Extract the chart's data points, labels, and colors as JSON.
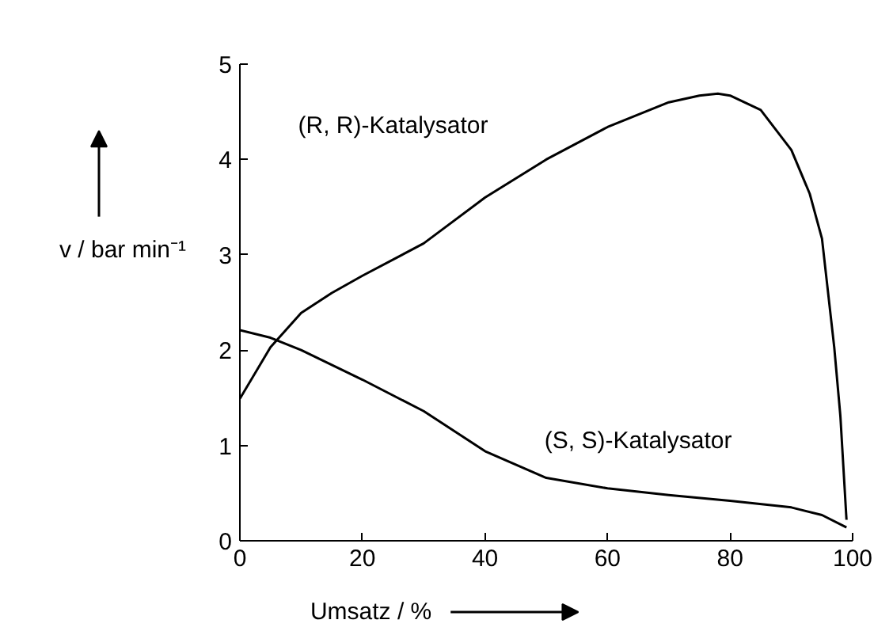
{
  "chart_data": {
    "type": "line",
    "xlabel": "Umsatz / %",
    "ylabel": "v / bar min⁻¹",
    "xlim": [
      0,
      100
    ],
    "ylim": [
      0,
      5
    ],
    "xticks": [
      0,
      20,
      40,
      60,
      80,
      100
    ],
    "yticks": [
      0,
      1,
      2,
      3,
      4,
      5
    ],
    "grid": false,
    "marker": "none",
    "line_style": "solid",
    "series": [
      {
        "color": "#000000",
        "x": [
          0,
          5,
          10,
          15,
          20,
          30,
          40,
          50,
          60,
          70,
          75,
          78,
          80,
          85,
          90,
          93,
          95,
          97,
          98,
          99
        ],
        "values": [
          1.49,
          2.03,
          2.39,
          2.6,
          2.78,
          3.12,
          3.6,
          4.0,
          4.34,
          4.6,
          4.67,
          4.69,
          4.67,
          4.52,
          4.1,
          3.64,
          3.17,
          2.03,
          1.31,
          0.22
        ]
      },
      {
        "color": "#000000",
        "x": [
          0,
          5,
          10,
          20,
          30,
          40,
          50,
          60,
          70,
          80,
          90,
          95,
          99
        ],
        "values": [
          2.21,
          2.13,
          2.0,
          1.69,
          1.36,
          0.94,
          0.66,
          0.55,
          0.48,
          0.42,
          0.35,
          0.27,
          0.14
        ]
      }
    ],
    "annotations": [
      "(R, R)-Katalysator",
      "(S, S)-Katalysator"
    ]
  }
}
